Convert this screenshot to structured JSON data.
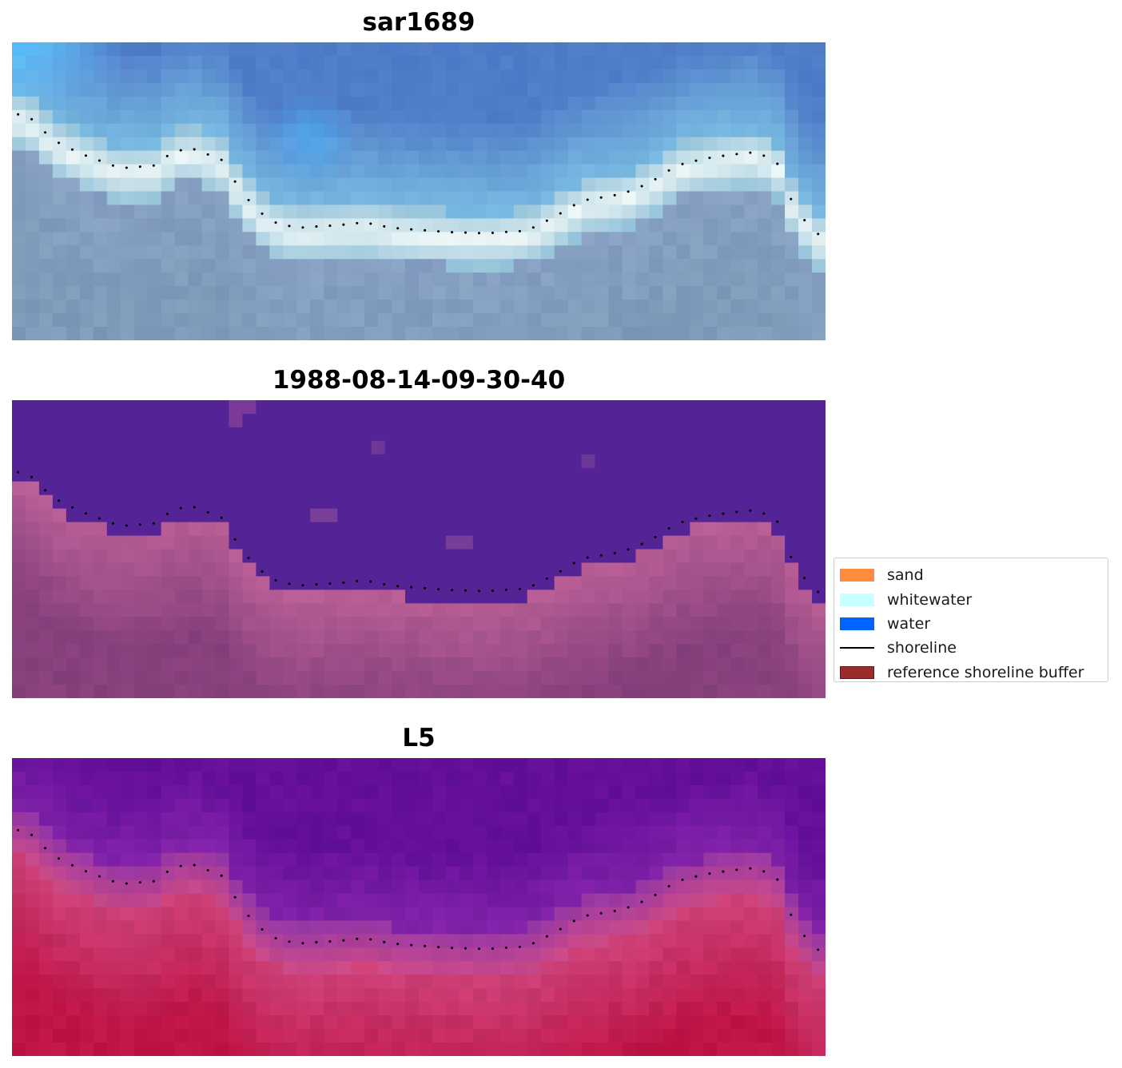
{
  "panels": [
    {
      "title": "sar1689",
      "palette": "rgb"
    },
    {
      "title": "1988-08-14-09-30-40",
      "palette": "classified"
    },
    {
      "title": "L5",
      "palette": "index"
    }
  ],
  "legend": {
    "items": [
      {
        "label": "sand",
        "color": "#ff8c3c",
        "kind": "patch"
      },
      {
        "label": "whitewater",
        "color": "#c8ffff",
        "kind": "patch"
      },
      {
        "label": "water",
        "color": "#0064ff",
        "kind": "patch"
      },
      {
        "label": "shoreline",
        "color": "#000000",
        "kind": "line"
      },
      {
        "label": "reference shoreline buffer",
        "color": "#9c2b2b",
        "kind": "patch"
      }
    ]
  }
}
